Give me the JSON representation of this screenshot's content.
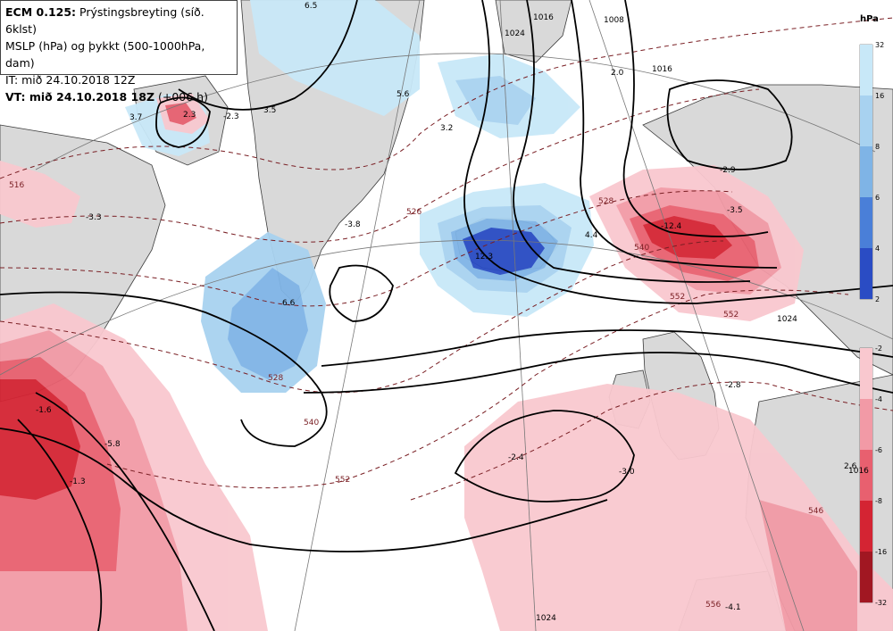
{
  "header": {
    "model": "ECM 0.125:",
    "product": "Prýstingsbreyting (síð. 6klst)",
    "line2": "MSLP (hPa) og þykkt (500-1000hPa, dam)",
    "line3": "IT: mið 24.10.2018 12Z",
    "vt_label": "VT: mið 24.10.2018 18Z",
    "vt_suffix": "(+006 h)"
  },
  "legend": {
    "unit": "hPa",
    "rise": {
      "colors": [
        "#c8e8f8",
        "#a8d2f0",
        "#7fb4e6",
        "#4a7fd8",
        "#2a4cc4"
      ],
      "labels": [
        "32",
        "16",
        "8",
        "6",
        "4",
        "2"
      ]
    },
    "fall": {
      "colors": [
        "#f9c8cf",
        "#f29aa6",
        "#e8606f",
        "#d42433",
        "#a11722"
      ],
      "labels": [
        "-2",
        "-4",
        "-6",
        "-8",
        "-16",
        "-32"
      ]
    }
  },
  "pressure_labels": [
    "6.5",
    "5.6",
    "3.5",
    "3.7",
    "-2.3",
    "-3.3",
    "-3.8",
    "3.2",
    "6.6",
    "12.3",
    "-12.4",
    "-3.5",
    "-2.9",
    "4.4",
    "2.0",
    "-2.8",
    "-5.8",
    "-2.4",
    "-3.0",
    "-4.1",
    "2.6",
    "2.3",
    "-1.6",
    "-1.3"
  ],
  "isobar_labels": [
    "1024",
    "1016",
    "1008",
    "1024",
    "1016",
    "1024",
    "1016"
  ],
  "thickness_labels": [
    "516",
    "526",
    "528",
    "528",
    "540",
    "552",
    "540",
    "552",
    "552",
    "546",
    "556"
  ],
  "colors": {
    "land": "#d9d9d9",
    "sea": "#ffffff",
    "isobar": "#000000",
    "thickness": "#7a1f24",
    "graticule": "#777777"
  }
}
